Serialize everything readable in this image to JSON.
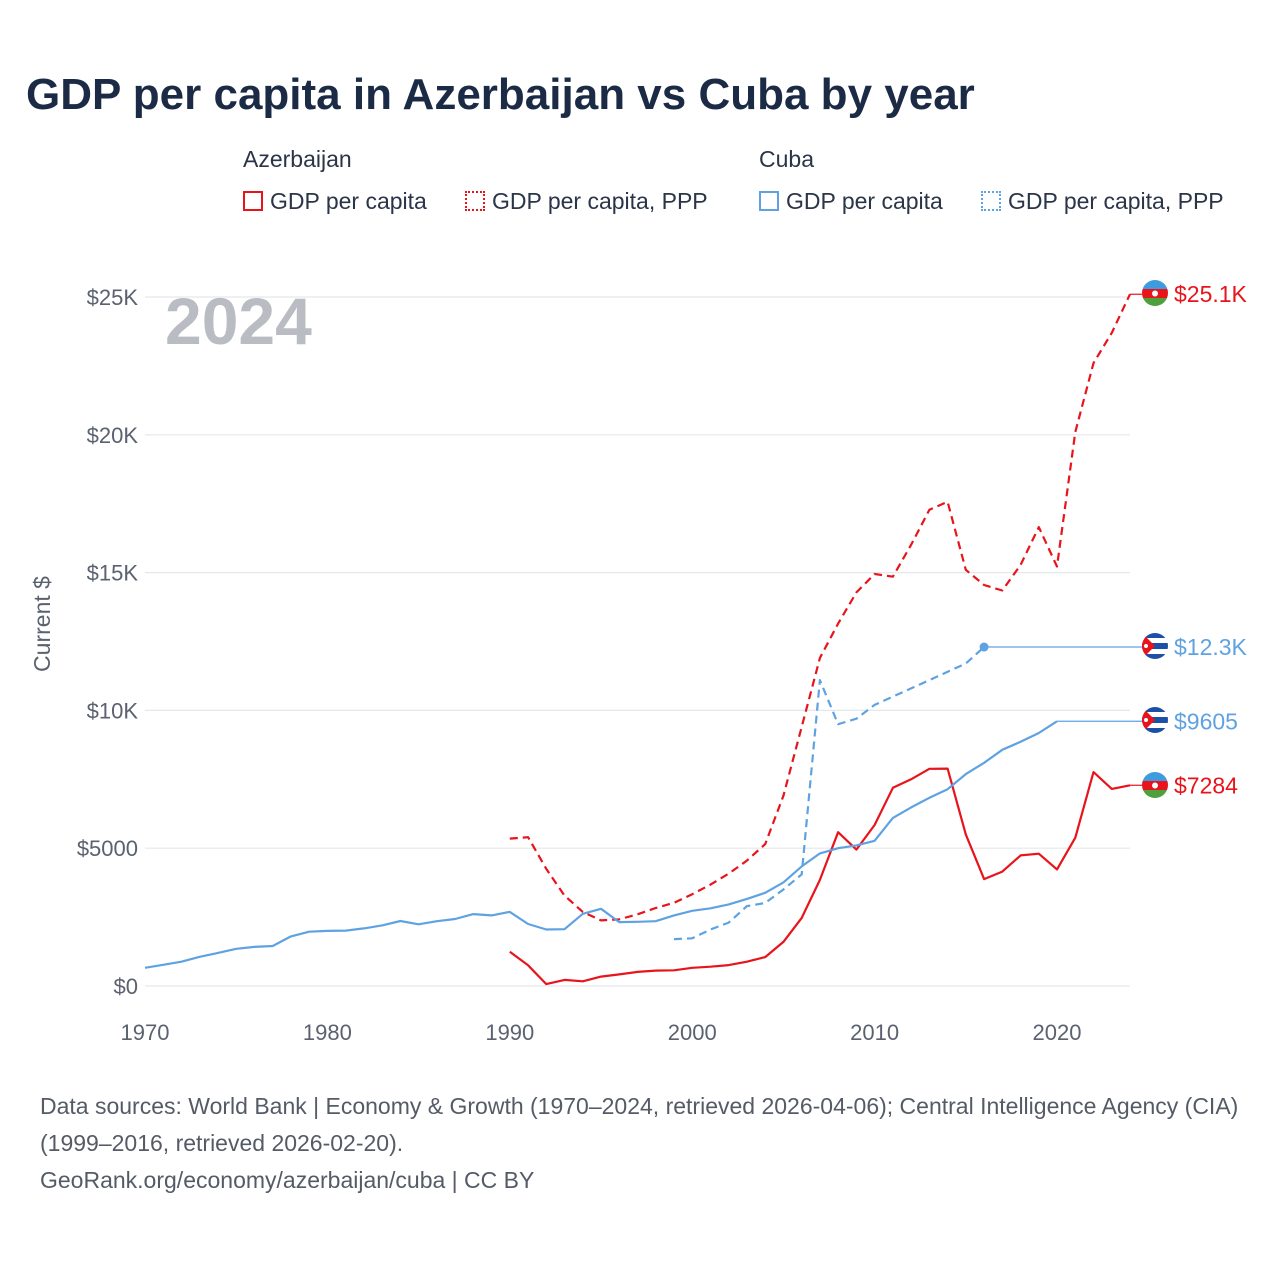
{
  "title": "GDP per capita in Azerbaijan vs Cuba by year",
  "legend": {
    "groups": [
      {
        "name": "Azerbaijan",
        "items": [
          {
            "label": "GDP per capita",
            "style": "solid",
            "color": "#e8141b"
          },
          {
            "label": "GDP per capita, PPP",
            "style": "dotted",
            "color": "#e8141b"
          }
        ]
      },
      {
        "name": "Cuba",
        "items": [
          {
            "label": "GDP per capita",
            "style": "solid",
            "color": "#5fa2e2"
          },
          {
            "label": "GDP per capita, PPP",
            "style": "dotted",
            "color": "#5fa2e2"
          }
        ]
      }
    ]
  },
  "year_display": "2024",
  "chart_data": {
    "type": "line",
    "title": "GDP per capita in Azerbaijan vs Cuba by year",
    "xlabel": "",
    "ylabel": "Current $",
    "xlim": [
      1970,
      2024
    ],
    "ylim": [
      0,
      25000
    ],
    "x_ticks": [
      1970,
      1980,
      1990,
      2000,
      2010,
      2020
    ],
    "x_tick_labels": [
      "1970",
      "1980",
      "1990",
      "2000",
      "2010",
      "2020"
    ],
    "y_ticks": [
      0,
      5000,
      10000,
      15000,
      20000,
      25000
    ],
    "y_tick_labels": [
      "$0",
      "$5000",
      "$10K",
      "$15K",
      "$20K",
      "$25K"
    ],
    "grid": true,
    "legend_position": "top",
    "series": [
      {
        "name": "Azerbaijan GDP per capita",
        "country": "Azerbaijan",
        "style": "solid",
        "color": "#e8141b",
        "end_label": "$7284",
        "points": [
          [
            1990,
            1240
          ],
          [
            1991,
            750
          ],
          [
            1992,
            70
          ],
          [
            1993,
            220
          ],
          [
            1994,
            170
          ],
          [
            1995,
            340
          ],
          [
            1996,
            420
          ],
          [
            1997,
            510
          ],
          [
            1998,
            560
          ],
          [
            1999,
            570
          ],
          [
            2000,
            660
          ],
          [
            2001,
            700
          ],
          [
            2002,
            760
          ],
          [
            2003,
            880
          ],
          [
            2004,
            1050
          ],
          [
            2005,
            1600
          ],
          [
            2006,
            2470
          ],
          [
            2007,
            3850
          ],
          [
            2008,
            5580
          ],
          [
            2009,
            4950
          ],
          [
            2010,
            5840
          ],
          [
            2011,
            7190
          ],
          [
            2012,
            7500
          ],
          [
            2013,
            7880
          ],
          [
            2014,
            7890
          ],
          [
            2015,
            5500
          ],
          [
            2016,
            3880
          ],
          [
            2017,
            4150
          ],
          [
            2018,
            4740
          ],
          [
            2019,
            4800
          ],
          [
            2020,
            4230
          ],
          [
            2021,
            5380
          ],
          [
            2022,
            7760
          ],
          [
            2023,
            7150
          ],
          [
            2024,
            7284
          ]
        ]
      },
      {
        "name": "Azerbaijan GDP per capita, PPP",
        "country": "Azerbaijan",
        "style": "dashed",
        "color": "#e8141b",
        "end_label": "$25.1K",
        "points": [
          [
            1990,
            5350
          ],
          [
            1991,
            5400
          ],
          [
            1992,
            4250
          ],
          [
            1993,
            3280
          ],
          [
            1994,
            2690
          ],
          [
            1995,
            2380
          ],
          [
            1996,
            2420
          ],
          [
            1997,
            2600
          ],
          [
            1998,
            2830
          ],
          [
            1999,
            3020
          ],
          [
            2000,
            3330
          ],
          [
            2001,
            3680
          ],
          [
            2002,
            4080
          ],
          [
            2003,
            4550
          ],
          [
            2004,
            5150
          ],
          [
            2005,
            6900
          ],
          [
            2006,
            9400
          ],
          [
            2007,
            11900
          ],
          [
            2008,
            13150
          ],
          [
            2009,
            14280
          ],
          [
            2010,
            14950
          ],
          [
            2011,
            14850
          ],
          [
            2012,
            16010
          ],
          [
            2013,
            17280
          ],
          [
            2014,
            17570
          ],
          [
            2015,
            15100
          ],
          [
            2016,
            14550
          ],
          [
            2017,
            14350
          ],
          [
            2018,
            15280
          ],
          [
            2019,
            16650
          ],
          [
            2020,
            15220
          ],
          [
            2021,
            20100
          ],
          [
            2022,
            22600
          ],
          [
            2023,
            23700
          ],
          [
            2024,
            25100
          ]
        ]
      },
      {
        "name": "Cuba GDP per capita",
        "country": "Cuba",
        "style": "solid",
        "color": "#5fa2e2",
        "end_label": "$9605",
        "points": [
          [
            1970,
            660
          ],
          [
            1971,
            770
          ],
          [
            1972,
            880
          ],
          [
            1973,
            1060
          ],
          [
            1974,
            1200
          ],
          [
            1975,
            1350
          ],
          [
            1976,
            1420
          ],
          [
            1977,
            1450
          ],
          [
            1978,
            1800
          ],
          [
            1979,
            1970
          ],
          [
            1980,
            2000
          ],
          [
            1981,
            2010
          ],
          [
            1982,
            2090
          ],
          [
            1983,
            2200
          ],
          [
            1984,
            2360
          ],
          [
            1985,
            2240
          ],
          [
            1986,
            2350
          ],
          [
            1987,
            2430
          ],
          [
            1988,
            2610
          ],
          [
            1989,
            2560
          ],
          [
            1990,
            2690
          ],
          [
            1991,
            2250
          ],
          [
            1992,
            2050
          ],
          [
            1993,
            2060
          ],
          [
            1994,
            2620
          ],
          [
            1995,
            2800
          ],
          [
            1996,
            2320
          ],
          [
            1997,
            2330
          ],
          [
            1998,
            2350
          ],
          [
            1999,
            2560
          ],
          [
            2000,
            2730
          ],
          [
            2001,
            2820
          ],
          [
            2002,
            2960
          ],
          [
            2003,
            3160
          ],
          [
            2004,
            3380
          ],
          [
            2005,
            3760
          ],
          [
            2006,
            4340
          ],
          [
            2007,
            4810
          ],
          [
            2008,
            5000
          ],
          [
            2009,
            5100
          ],
          [
            2010,
            5270
          ],
          [
            2011,
            6100
          ],
          [
            2012,
            6480
          ],
          [
            2013,
            6830
          ],
          [
            2014,
            7140
          ],
          [
            2015,
            7690
          ],
          [
            2016,
            8100
          ],
          [
            2017,
            8570
          ],
          [
            2018,
            8860
          ],
          [
            2019,
            9180
          ],
          [
            2020,
            9605
          ],
          [
            2024,
            9605
          ]
        ]
      },
      {
        "name": "Cuba GDP per capita, PPP",
        "country": "Cuba",
        "style": "dashed",
        "color": "#5fa2e2",
        "end_label": "$12.3K",
        "points": [
          [
            1999,
            1700
          ],
          [
            2000,
            1730
          ],
          [
            2001,
            2050
          ],
          [
            2002,
            2300
          ],
          [
            2003,
            2900
          ],
          [
            2004,
            3010
          ],
          [
            2005,
            3500
          ],
          [
            2006,
            4050
          ],
          [
            2007,
            11100
          ],
          [
            2008,
            9500
          ],
          [
            2009,
            9700
          ],
          [
            2010,
            10200
          ],
          [
            2011,
            10500
          ],
          [
            2012,
            10800
          ],
          [
            2013,
            11100
          ],
          [
            2014,
            11400
          ],
          [
            2015,
            11700
          ],
          [
            2016,
            12300
          ],
          [
            2024,
            12300
          ]
        ]
      }
    ]
  },
  "footer": {
    "sources": "Data sources: World Bank | Economy & Growth (1970–2024, retrieved 2026-04-06); Central Intelligence Agency (CIA) (1999–2016, retrieved 2026-02-20).",
    "url": "GeoRank.org/economy/azerbaijan/cuba | CC BY"
  }
}
